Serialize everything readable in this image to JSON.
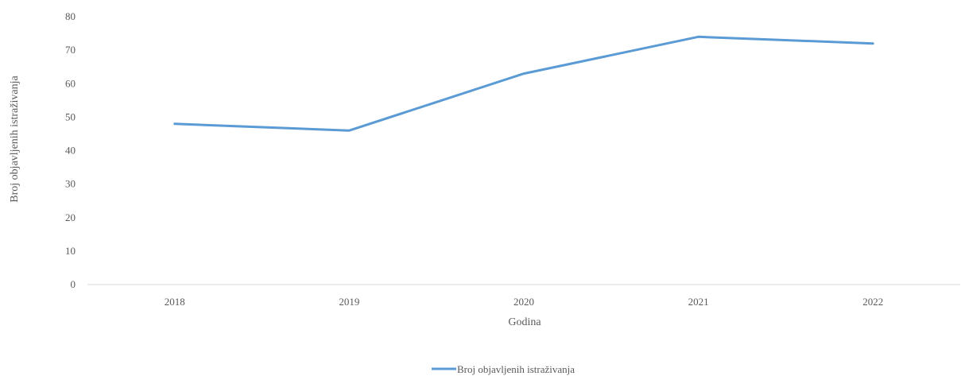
{
  "chart_data": {
    "type": "line",
    "title": "",
    "xlabel": "Godina",
    "ylabel": "Broj objavljenih istraživanja",
    "categories": [
      "2018",
      "2019",
      "2020",
      "2021",
      "2022"
    ],
    "series": [
      {
        "name": "Broj objavljenih istraživanja",
        "values": [
          48,
          46,
          63,
          74,
          72
        ],
        "color": "#5b9bd5"
      }
    ],
    "ylim": [
      0,
      80
    ],
    "yticks": [
      "0",
      "10",
      "20",
      "30",
      "40",
      "50",
      "60",
      "70",
      "80"
    ],
    "grid": false,
    "legend_position": "bottom"
  }
}
